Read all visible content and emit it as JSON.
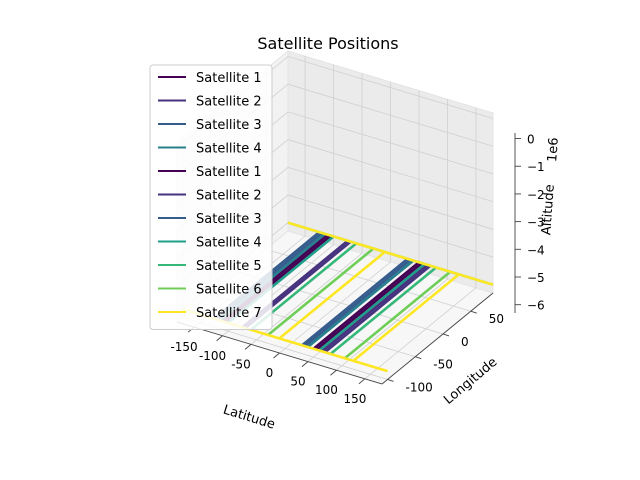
{
  "chart_data": {
    "type": "line",
    "projection": "3d",
    "title": "Satellite Positions",
    "xlabel": "Latitude",
    "ylabel": "Longitude",
    "zlabel": "Altitude",
    "z_offset_label": "1e6",
    "xlim": [
      -180,
      180
    ],
    "ylim": [
      -110,
      90
    ],
    "zlim": [
      -6.3,
      0.2
    ],
    "x_ticks": [
      "-150",
      "-100",
      "-50",
      "0",
      "50",
      "100",
      "150"
    ],
    "x_tick_values": [
      -150,
      -100,
      -50,
      0,
      50,
      100,
      150
    ],
    "y_ticks": [
      "-100",
      "-50",
      "0",
      "50"
    ],
    "y_tick_values": [
      -100,
      -50,
      0,
      50
    ],
    "z_ticks": [
      "0",
      "−1",
      "−2",
      "−3",
      "−4",
      "−5",
      "−6"
    ],
    "z_tick_values": [
      0,
      -1,
      -2,
      -3,
      -4,
      -5,
      -6
    ],
    "grid": true,
    "legend_position": "upper-left",
    "series": [
      {
        "name": "Satellite 1",
        "color": "#440154",
        "points": [
          [
            -110,
            90,
            -6.0
          ],
          [
            -110,
            -100,
            -6.0
          ],
          [
            50,
            90,
            -6.0
          ],
          [
            50,
            -100,
            -6.0
          ]
        ]
      },
      {
        "name": "Satellite 2",
        "color": "#46327e",
        "points": [
          [
            -75,
            90,
            -6.0
          ],
          [
            -75,
            -100,
            -6.0
          ],
          [
            65,
            90,
            -6.0
          ],
          [
            65,
            -100,
            -6.0
          ]
        ]
      },
      {
        "name": "Satellite 3",
        "color": "#365c8d",
        "points": [
          [
            -120,
            90,
            -6.0
          ],
          [
            -120,
            -100,
            -6.0
          ],
          [
            35,
            90,
            -6.0
          ],
          [
            35,
            -100,
            -6.0
          ]
        ]
      },
      {
        "name": "Satellite 4",
        "color": "#277f8e",
        "points": [
          [
            -115,
            90,
            -6.0
          ],
          [
            -115,
            -100,
            -6.0
          ],
          [
            40,
            90,
            -6.0
          ],
          [
            40,
            -100,
            -6.0
          ]
        ]
      },
      {
        "name": "Satellite 1",
        "color": "#440154",
        "points": [
          [
            -105,
            90,
            -6.0
          ],
          [
            -105,
            -100,
            -6.0
          ],
          [
            55,
            90,
            -6.0
          ],
          [
            55,
            -100,
            -6.0
          ]
        ]
      },
      {
        "name": "Satellite 2",
        "color": "#46327e",
        "points": [
          [
            -70,
            90,
            -6.0
          ],
          [
            -70,
            -100,
            -6.0
          ],
          [
            70,
            90,
            -6.0
          ],
          [
            70,
            -100,
            -6.0
          ]
        ]
      },
      {
        "name": "Satellite 3",
        "color": "#365c8d",
        "points": [
          [
            -125,
            90,
            -6.0
          ],
          [
            -125,
            -100,
            -6.0
          ],
          [
            30,
            90,
            -6.0
          ],
          [
            30,
            -100,
            -6.0
          ]
        ]
      },
      {
        "name": "Satellite 4",
        "color": "#1f9e89",
        "points": [
          [
            -100,
            90,
            -6.0
          ],
          [
            -100,
            -100,
            -6.0
          ],
          [
            60,
            90,
            -6.0
          ],
          [
            60,
            -100,
            -6.0
          ]
        ]
      },
      {
        "name": "Satellite 5",
        "color": "#35b779",
        "points": [
          [
            -60,
            90,
            -6.0
          ],
          [
            -60,
            -100,
            -6.0
          ],
          [
            80,
            90,
            -6.0
          ],
          [
            80,
            -100,
            -6.0
          ]
        ]
      },
      {
        "name": "Satellite 6",
        "color": "#6ece58",
        "points": [
          [
            -30,
            90,
            -6.0
          ],
          [
            -30,
            -100,
            -6.0
          ],
          [
            105,
            90,
            -6.0
          ],
          [
            105,
            -100,
            -6.0
          ],
          [
            -180,
            90,
            -6.0
          ],
          [
            180,
            90,
            -6.0
          ]
        ]
      },
      {
        "name": "Satellite 7",
        "color": "#fde725",
        "points": [
          [
            -180,
            -100,
            -6.0
          ],
          [
            180,
            -100,
            -6.0
          ],
          [
            -180,
            90,
            -6.0
          ],
          [
            180,
            90,
            -6.0
          ],
          [
            -10,
            90,
            -6.0
          ],
          [
            -10,
            -100,
            -6.0
          ],
          [
            120,
            90,
            -6.0
          ],
          [
            120,
            -100,
            -6.0
          ]
        ]
      }
    ]
  }
}
